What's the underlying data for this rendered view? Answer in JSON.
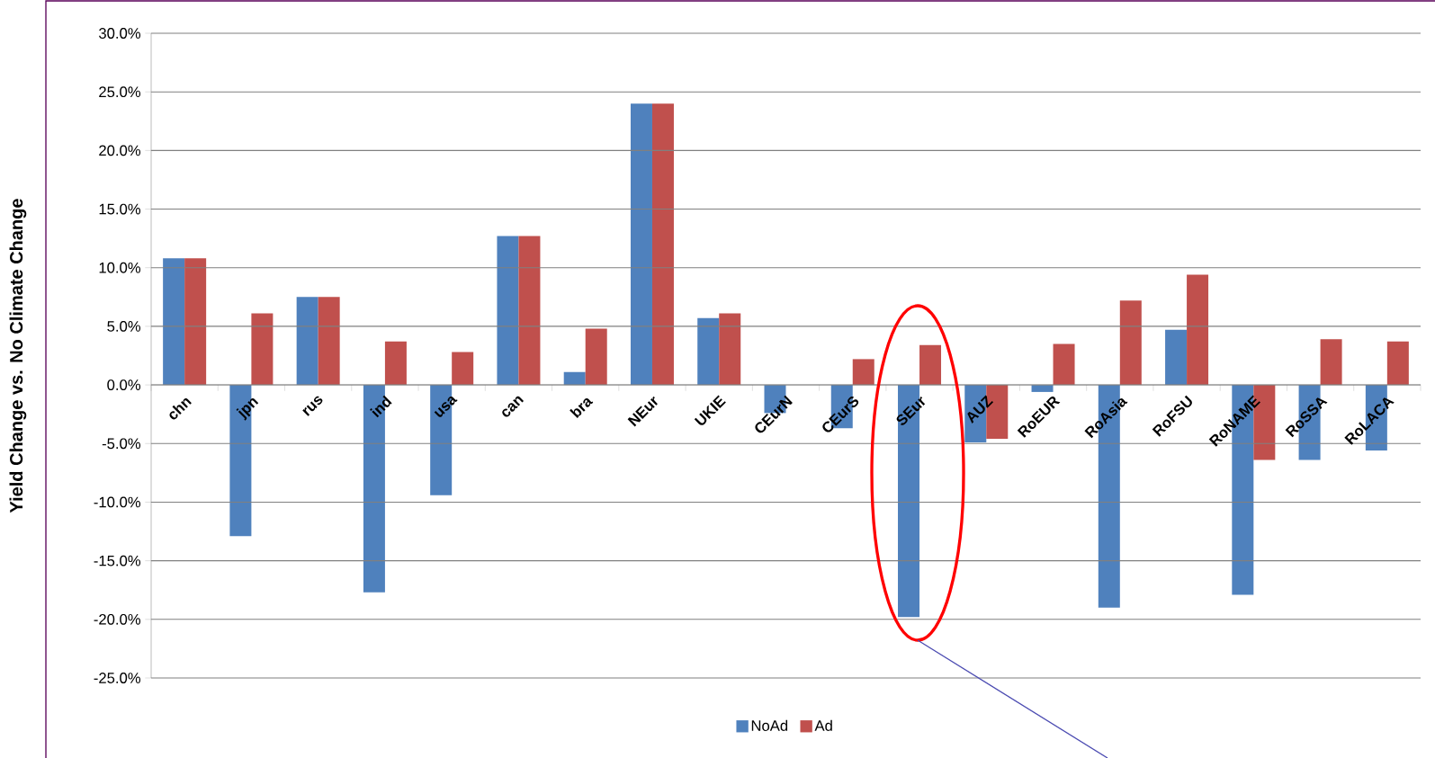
{
  "chart_data": {
    "type": "bar",
    "ylabel": "Yield Change vs. No Climate Change",
    "categories": [
      "chn",
      "jpn",
      "rus",
      "ind",
      "usa",
      "can",
      "bra",
      "NEur",
      "UKIE",
      "CEurN",
      "CEurS",
      "SEur",
      "AUZ",
      "RoEUR",
      "RoAsia",
      "RoFSU",
      "RoNAME",
      "RoSSA",
      "RoLACA"
    ],
    "series": [
      {
        "name": "NoAd",
        "color": "#4f81bd",
        "values": [
          10.8,
          -12.9,
          7.5,
          -17.7,
          -9.4,
          12.7,
          1.1,
          24.0,
          5.7,
          -2.4,
          -3.7,
          -19.8,
          -4.9,
          -0.6,
          -19.0,
          4.7,
          -17.9,
          -6.4,
          -5.6
        ]
      },
      {
        "name": "Ad",
        "color": "#c0504d",
        "values": [
          10.8,
          6.1,
          7.5,
          3.7,
          2.8,
          12.7,
          4.8,
          24.0,
          6.1,
          null,
          2.2,
          3.4,
          -4.6,
          3.5,
          7.2,
          9.4,
          -6.4,
          3.9,
          3.7
        ]
      }
    ],
    "ylim": [
      -25,
      30
    ],
    "yticks": [
      {
        "value": -25,
        "label": "-25.0%"
      },
      {
        "value": -20,
        "label": "-20.0%"
      },
      {
        "value": -15,
        "label": "-15.0%"
      },
      {
        "value": -10,
        "label": "-10.0%"
      },
      {
        "value": -5,
        "label": "-5.0%"
      },
      {
        "value": 0,
        "label": "0.0%"
      },
      {
        "value": 5,
        "label": "5.0%"
      },
      {
        "value": 10,
        "label": "10.0%"
      },
      {
        "value": 15,
        "label": "15.0%"
      },
      {
        "value": 20,
        "label": "20.0%"
      },
      {
        "value": 25,
        "label": "25.0%"
      },
      {
        "value": 30,
        "label": "30.0%"
      }
    ],
    "grid": "y",
    "legend": "bottom"
  }
}
